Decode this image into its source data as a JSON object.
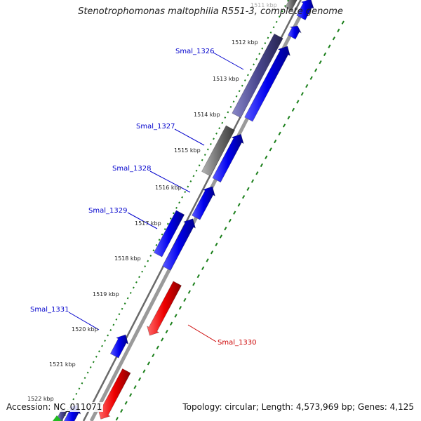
{
  "title": "Stenotrophomonas maltophilia R551-3, complete genome",
  "ticks": [
    {
      "label": "1511 kbp"
    },
    {
      "label": "1512 kbp"
    },
    {
      "label": "1513 kbp"
    },
    {
      "label": "1514 kbp"
    },
    {
      "label": "1515 kbp"
    },
    {
      "label": "1516 kbp"
    },
    {
      "label": "1517 kbp"
    },
    {
      "label": "1518 kbp"
    },
    {
      "label": "1519 kbp"
    },
    {
      "label": "1520 kbp"
    },
    {
      "label": "1521 kbp"
    },
    {
      "label": "1522 kbp"
    }
  ],
  "gene_labels": {
    "g1326": "Smal_1326",
    "g1327": "Smal_1327",
    "g1328": "Smal_1328",
    "g1329": "Smal_1329",
    "g1331": "Smal_1331",
    "g1330": "Smal_1330"
  },
  "colors": {
    "forward_gene": "#0000ee",
    "reverse_gene": "#ee0000",
    "rna_slate": "#4a4790",
    "gray_feature": "#707070",
    "backbone": "#808080",
    "gc_ticks": "#1a7f1a",
    "label_blue": "#0000cc",
    "label_red": "#cc0000"
  },
  "footer": {
    "accession": "Accession: NC_011071",
    "summary": "Topology: circular; Length: 4,573,969 bp; Genes: 4,125"
  }
}
